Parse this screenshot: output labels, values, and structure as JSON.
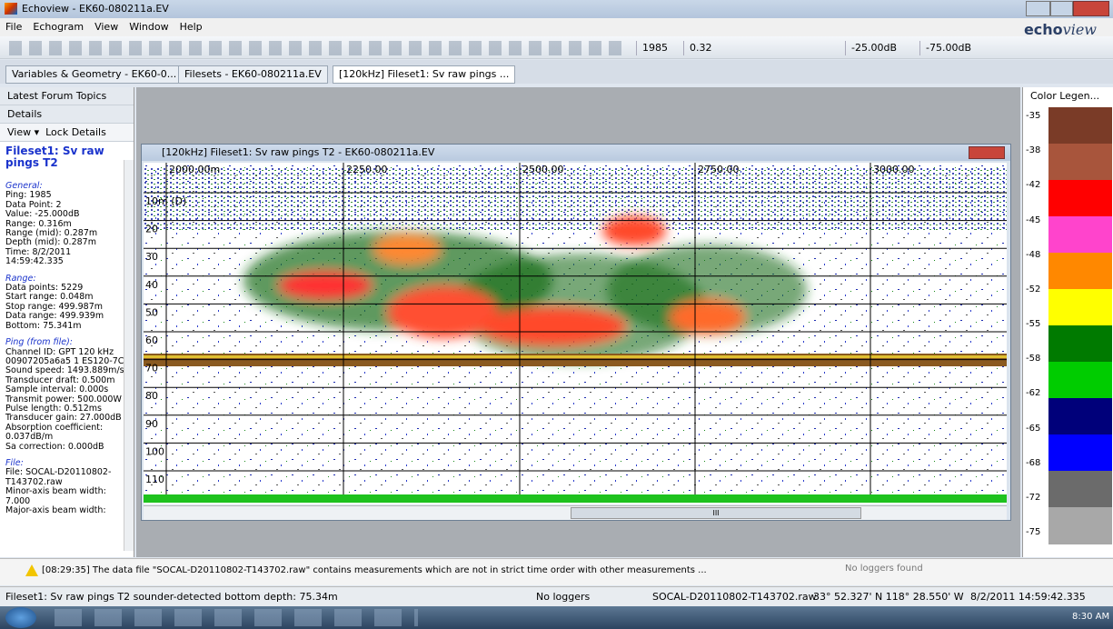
{
  "window": {
    "title": "Echoview - EK60-080211a.EV"
  },
  "menu": [
    "File",
    "Echogram",
    "View",
    "Window",
    "Help"
  ],
  "logo": {
    "a": "echo",
    "b": "view"
  },
  "toolbar": {
    "ping": "1985",
    "range": "0.32",
    "max": "-25.00dB",
    "min": "-75.00dB"
  },
  "tabs": [
    "Variables & Geometry - EK60-0...",
    "Filesets - EK60-080211a.EV",
    "[120kHz] Fileset1: Sv raw pings ..."
  ],
  "left_panel": {
    "top_title": "Latest Forum Topics",
    "details_title": "Details",
    "view_button": "View",
    "lock_button": "Lock Details",
    "heading": "Fileset1: Sv raw pings T2",
    "sections": [
      {
        "title": "General:",
        "lines": [
          "Ping: 1985",
          "Data Point: 2",
          "Value: -25.000dB",
          "Range: 0.316m",
          "Range (mid): 0.287m",
          "Depth (mid): 0.287m",
          "Time: 8/2/2011",
          "14:59:42.335"
        ]
      },
      {
        "title": "Range:",
        "lines": [
          "Data points: 5229",
          "Start range: 0.048m",
          "Stop range: 499.987m",
          "Data range: 499.939m",
          "Bottom: 75.341m"
        ]
      },
      {
        "title": "Ping (from file):",
        "lines": [
          "Channel ID: GPT 120 kHz",
          "00907205a6a5 1 ES120-7C",
          "Sound speed: 1493.889m/s",
          "Transducer draft: 0.500m",
          "Sample interval: 0.000s",
          "Transmit power: 500.000W",
          "Pulse length: 0.512ms",
          "Transducer gain: 27.000dB",
          "Absorption coefficient:",
          "0.037dB/m",
          "Sa correction: 0.000dB"
        ]
      },
      {
        "title": "File:",
        "lines": [
          "File: SOCAL-D20110802-",
          "T143702.raw",
          "Minor-axis beam width:",
          "7.000",
          "Major-axis beam width:"
        ]
      }
    ]
  },
  "echogram": {
    "title": "[120kHz] Fileset1: Sv raw pings T2 - EK60-080211a.EV",
    "distance_labels": [
      "2000.00m",
      "2250.00",
      "2500.00",
      "2750.00",
      "3000.00"
    ],
    "depth_labels": [
      "10m (D)",
      "20",
      "30",
      "40",
      "50",
      "60",
      "70",
      "80",
      "90",
      "100",
      "110"
    ],
    "scroll_label": "III"
  },
  "legend": {
    "title": "Color Legen...",
    "labels": [
      "-35",
      "-38",
      "-42",
      "-45",
      "-48",
      "-52",
      "-55",
      "-58",
      "-62",
      "-65",
      "-68",
      "-72",
      "-75"
    ],
    "colors": [
      "#7a3b27",
      "#a8553c",
      "#ff0000",
      "#ff44cc",
      "#ff8800",
      "#ffff00",
      "#007a00",
      "#00cc00",
      "#00007a",
      "#0000ff",
      "#6b6b6b",
      "#a8a8a8"
    ]
  },
  "message": {
    "text": "[08:29:35] The data file \"SOCAL-D20110802-T143702.raw\" contains measurements which are not in strict time order with other measurements ...",
    "loggers": "No loggers found"
  },
  "status": {
    "bottom": "Fileset1: Sv raw pings T2 sounder-detected bottom depth: 75.34m",
    "loggers": "No loggers",
    "file": "SOCAL-D20110802-T143702.raw",
    "position": "33° 52.327' N 118° 28.550' W",
    "time": "8/2/2011 14:59:42.335"
  },
  "taskbar": {
    "clock": "8:30 AM"
  }
}
